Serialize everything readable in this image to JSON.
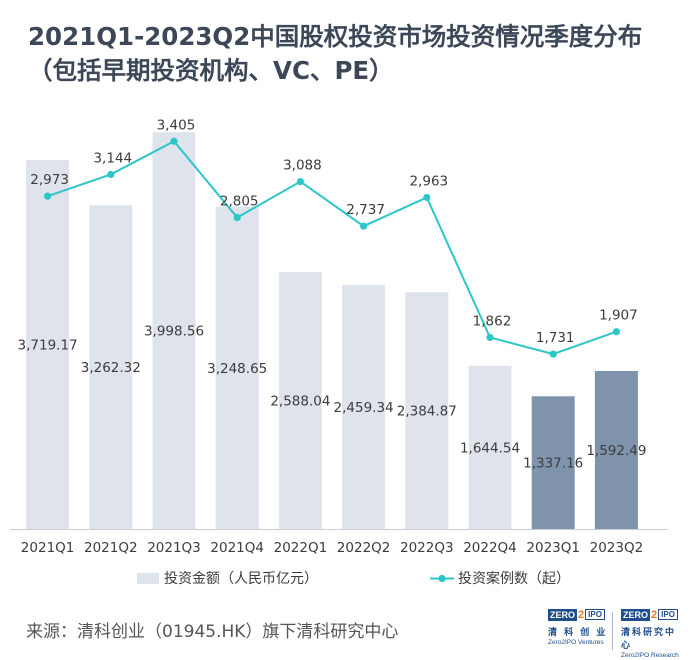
{
  "title": {
    "line1": "2021Q1-2023Q2中国股权投资市场投资情况季度分布",
    "line2": "（包括早期投资机构、VC、PE）"
  },
  "chart_data": {
    "type": "bar+line",
    "categories": [
      "2021Q1",
      "2021Q2",
      "2021Q3",
      "2021Q4",
      "2022Q1",
      "2022Q2",
      "2022Q3",
      "2022Q4",
      "2023Q1",
      "2023Q2"
    ],
    "series": [
      {
        "name": "投资金额（人民币亿元）",
        "type": "bar",
        "values": [
          3719.17,
          3262.32,
          3998.56,
          3248.65,
          2588.04,
          2459.34,
          2384.87,
          1644.54,
          1337.16,
          1592.49
        ],
        "labels": [
          "3,719.17",
          "3,262.32",
          "3,998.56",
          "3,248.65",
          "2,588.04",
          "2,459.34",
          "2,384.87",
          "1,644.54",
          "1,337.16",
          "1,592.49"
        ]
      },
      {
        "name": "投资案例数（起）",
        "type": "line",
        "values": [
          2973,
          3144,
          3405,
          2805,
          3088,
          2737,
          2963,
          1862,
          1731,
          1907
        ],
        "labels": [
          "2,973",
          "3,144",
          "3,405",
          "2,805",
          "3,088",
          "2,737",
          "2,963",
          "1,862",
          "1,731",
          "1,907"
        ]
      }
    ],
    "colors": {
      "bar": "#dfe3ec",
      "bar_highlight": "#7f93ac",
      "line": "#2cc6c9",
      "text": "#3c3c3c"
    },
    "highlighted_categories": [
      "2023Q1",
      "2023Q2"
    ]
  },
  "footer": {
    "source": "来源：清科创业（01945.HK）旗下清科研究中心"
  },
  "logos": [
    {
      "mark_left": "ZERO",
      "mark_mid": "2",
      "mark_right": "IPO",
      "cn": "清 科 创 业",
      "en": "Zero2IPO Ventures"
    },
    {
      "mark_left": "ZERO",
      "mark_mid": "2",
      "mark_right": "IPO",
      "cn": "清科研究中心",
      "en": "Zero2IPO Research"
    }
  ]
}
